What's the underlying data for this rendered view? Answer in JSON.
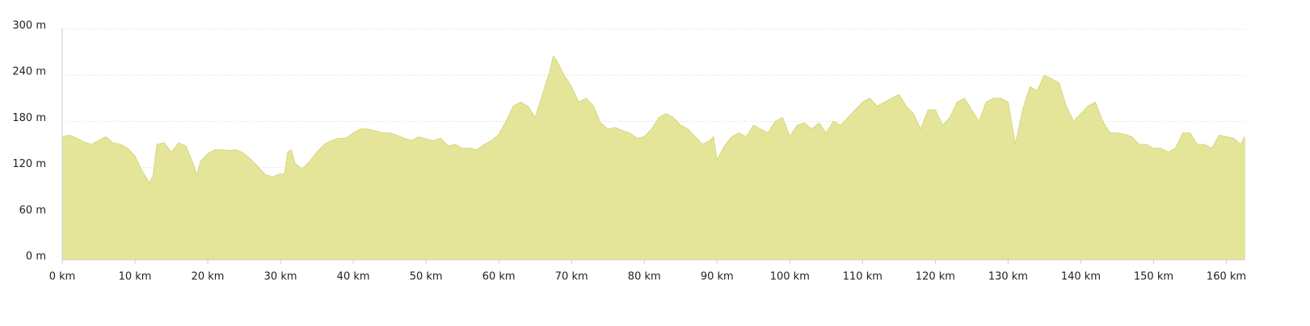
{
  "chart_data": {
    "type": "area",
    "x": [
      0,
      1,
      2,
      3,
      4,
      5,
      6,
      7,
      8,
      9,
      10,
      10.5,
      11,
      12,
      12.5,
      13,
      14,
      15,
      16,
      17,
      18,
      18.5,
      19,
      20,
      21,
      22,
      23,
      24,
      25,
      26,
      27,
      28,
      29,
      30,
      30.5,
      31,
      31.5,
      32,
      33,
      34,
      35,
      36,
      37,
      38,
      39,
      40,
      41,
      42,
      43,
      44,
      45,
      46,
      47,
      48,
      49,
      50,
      51,
      52,
      53,
      54,
      55,
      56,
      57,
      58,
      59,
      60,
      61,
      62,
      63,
      64,
      65,
      66,
      67,
      67.5,
      68,
      69,
      70,
      71,
      72,
      73,
      74,
      75,
      76,
      77,
      78,
      79,
      80,
      81,
      82,
      83,
      84,
      85,
      86,
      87,
      88,
      89,
      89.5,
      90,
      91,
      92,
      93,
      94,
      95,
      96,
      97,
      98,
      99,
      100,
      101,
      102,
      103,
      104,
      105,
      106,
      107,
      108,
      109,
      110,
      111,
      112,
      113,
      114,
      115,
      116,
      117,
      118,
      119,
      120,
      121,
      122,
      123,
      124,
      125,
      126,
      127,
      128,
      129,
      130,
      131,
      132,
      133,
      134,
      135,
      136,
      137,
      138,
      139,
      140,
      141,
      142,
      143,
      144,
      145,
      146,
      147,
      148,
      149,
      150,
      151,
      152,
      153,
      154,
      155,
      156,
      157,
      158,
      159,
      160,
      161,
      162,
      162.5
    ],
    "values": [
      160,
      162,
      158,
      153,
      150,
      155,
      160,
      152,
      150,
      145,
      135,
      125,
      115,
      100,
      110,
      150,
      152,
      140,
      152,
      148,
      125,
      110,
      128,
      138,
      143,
      143,
      142,
      143,
      138,
      130,
      120,
      110,
      108,
      112,
      110,
      140,
      143,
      125,
      118,
      128,
      140,
      150,
      155,
      158,
      158,
      165,
      170,
      170,
      168,
      165,
      165,
      162,
      158,
      155,
      160,
      157,
      155,
      158,
      148,
      150,
      145,
      145,
      143,
      150,
      155,
      163,
      180,
      200,
      205,
      200,
      185,
      215,
      245,
      265,
      258,
      240,
      225,
      205,
      210,
      200,
      178,
      170,
      172,
      168,
      165,
      158,
      160,
      170,
      185,
      190,
      185,
      175,
      170,
      160,
      150,
      155,
      160,
      130,
      148,
      160,
      165,
      160,
      175,
      170,
      165,
      180,
      185,
      160,
      175,
      178,
      170,
      178,
      165,
      180,
      175,
      185,
      195,
      205,
      210,
      200,
      205,
      210,
      215,
      200,
      190,
      170,
      195,
      195,
      175,
      185,
      205,
      210,
      195,
      180,
      205,
      210,
      210,
      205,
      150,
      195,
      225,
      220,
      240,
      235,
      230,
      200,
      180,
      190,
      200,
      205,
      180,
      165,
      165,
      163,
      160,
      150,
      150,
      145,
      145,
      140,
      145,
      165,
      165,
      150,
      150,
      145,
      162,
      160,
      158,
      150,
      160
    ],
    "color": "#e5e59a",
    "xlim": [
      0,
      162.5
    ],
    "ylim": [
      0,
      300
    ],
    "xticks": [
      {
        "value": 0,
        "label": "0 km"
      },
      {
        "value": 10,
        "label": "10 km"
      },
      {
        "value": 20,
        "label": "20 km"
      },
      {
        "value": 30,
        "label": "30 km"
      },
      {
        "value": 40,
        "label": "40 km"
      },
      {
        "value": 50,
        "label": "50 km"
      },
      {
        "value": 60,
        "label": "60 km"
      },
      {
        "value": 70,
        "label": "70 km"
      },
      {
        "value": 80,
        "label": "80 km"
      },
      {
        "value": 90,
        "label": "90 km"
      },
      {
        "value": 100,
        "label": "100 km"
      },
      {
        "value": 110,
        "label": "110 km"
      },
      {
        "value": 120,
        "label": "120 km"
      },
      {
        "value": 130,
        "label": "130 km"
      },
      {
        "value": 140,
        "label": "140 km"
      },
      {
        "value": 150,
        "label": "150 km"
      },
      {
        "value": 160,
        "label": "160 km"
      }
    ],
    "yticks": [
      {
        "value": 0,
        "label": "0 m"
      },
      {
        "value": 60,
        "label": "60 m"
      },
      {
        "value": 120,
        "label": "120 m"
      },
      {
        "value": 180,
        "label": "180 m"
      },
      {
        "value": 240,
        "label": "240 m"
      },
      {
        "value": 300,
        "label": "300 m"
      }
    ],
    "grid": true
  }
}
